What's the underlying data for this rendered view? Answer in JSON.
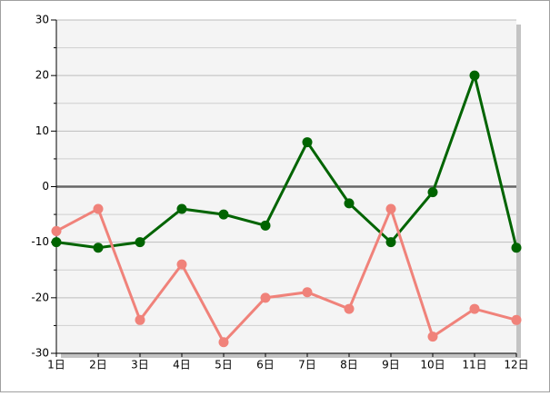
{
  "chart_data": {
    "type": "line",
    "categories": [
      "1日",
      "2日",
      "3日",
      "4日",
      "5日",
      "6日",
      "7日",
      "8日",
      "9日",
      "10日",
      "11日",
      "12日"
    ],
    "series": [
      {
        "color": "#006400",
        "values": [
          -10,
          -11,
          -10,
          -4,
          -5,
          -7,
          8,
          -3,
          -10,
          -1,
          20,
          -11
        ]
      },
      {
        "color": "#f0827a",
        "values": [
          -8,
          -4,
          -24,
          -14,
          -28,
          -20,
          -19,
          -22,
          -4,
          -27,
          -22,
          -24
        ]
      }
    ],
    "ylim": [
      -30,
      30
    ],
    "yticks": [
      -30,
      -20,
      -10,
      0,
      10,
      20,
      30
    ],
    "grid": true
  }
}
